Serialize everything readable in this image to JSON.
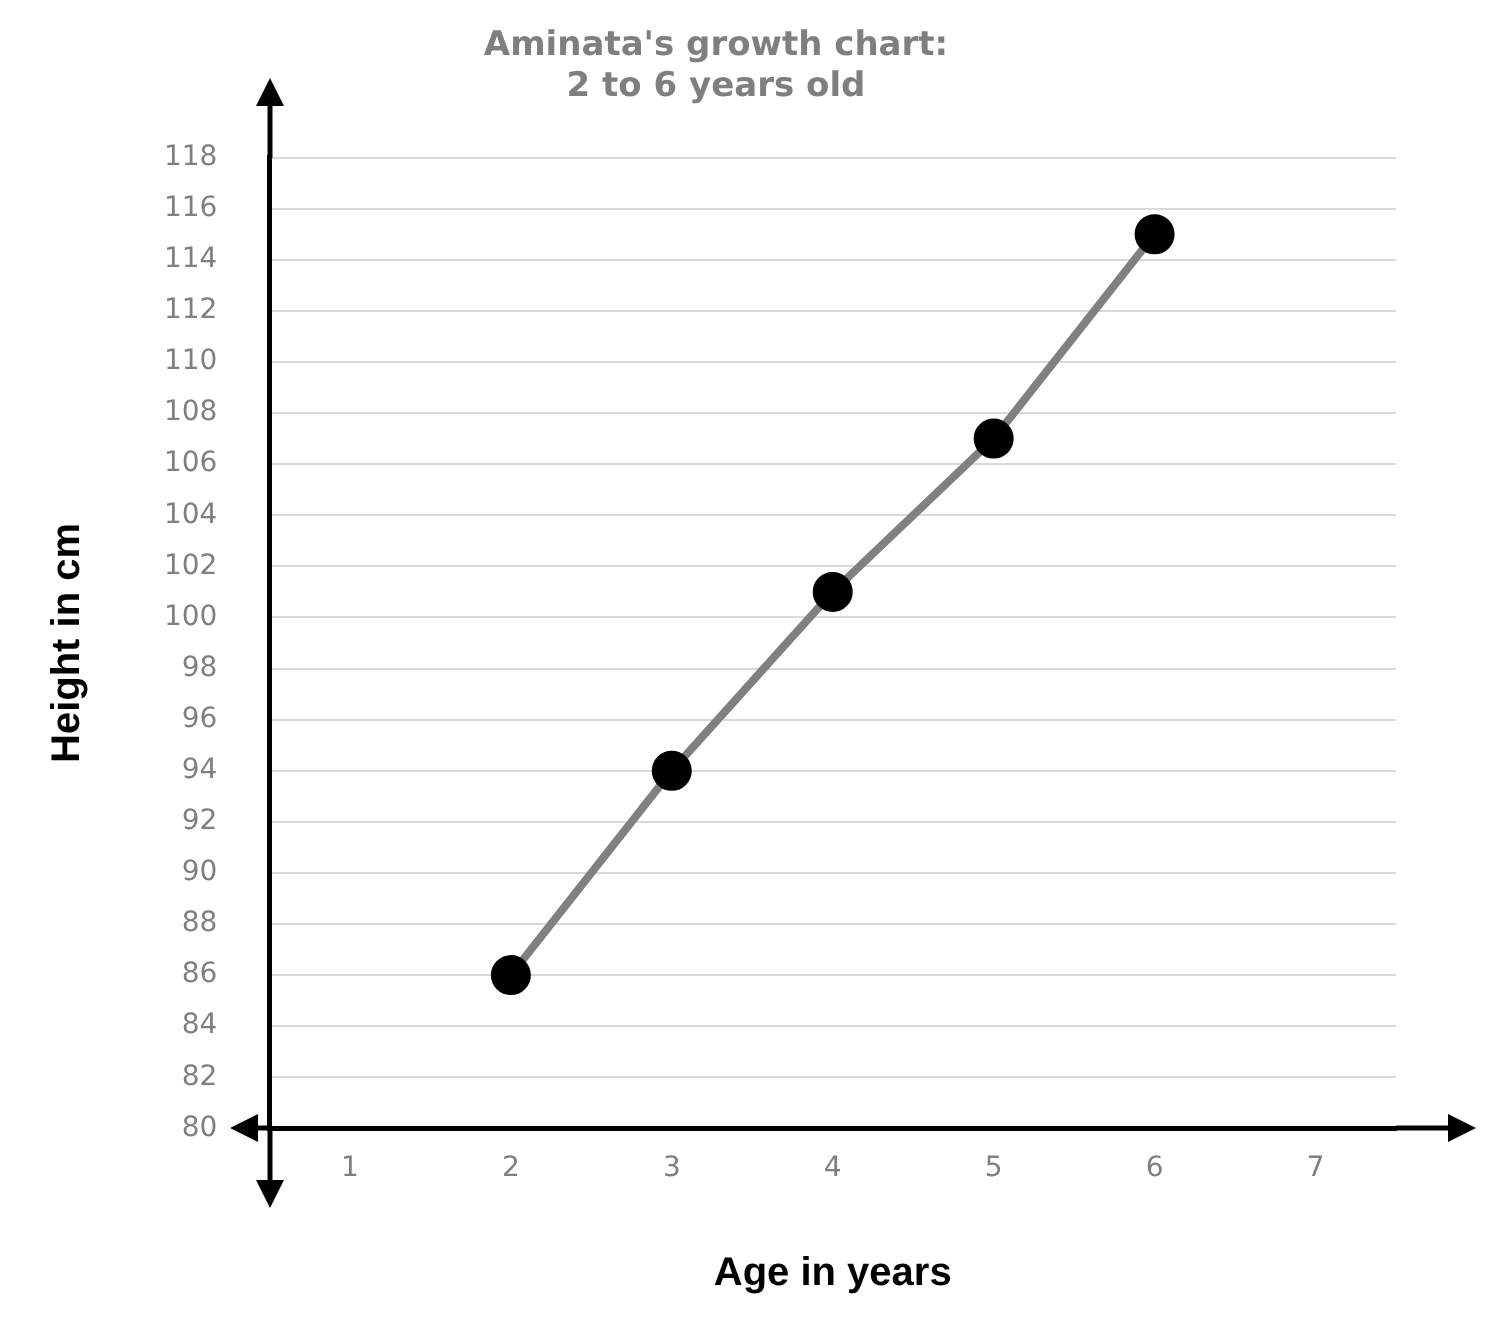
{
  "chart_data": {
    "type": "line",
    "title": "Aminata's growth chart:\n2 to 6 years old",
    "xlabel": "Age in years",
    "ylabel": "Height in cm",
    "categories": [
      "1",
      "2",
      "3",
      "4",
      "5",
      "6",
      "7"
    ],
    "series": [
      {
        "color": "#808080",
        "values": [
          null,
          86,
          94,
          101,
          107,
          115,
          null
        ]
      }
    ],
    "ylim": [
      80,
      118
    ],
    "yticks": [
      80,
      82,
      84,
      86,
      88,
      90,
      92,
      94,
      96,
      98,
      100,
      102,
      104,
      106,
      108,
      110,
      112,
      114,
      116,
      118
    ],
    "grid": "y",
    "legend": false,
    "marker": "circle",
    "line_style": "solid"
  }
}
